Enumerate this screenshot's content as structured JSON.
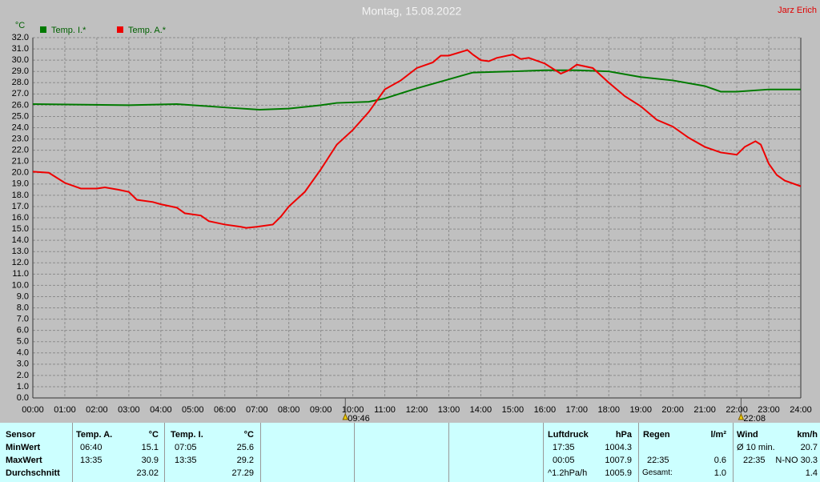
{
  "chart_data": {
    "type": "line",
    "title": "Montag, 15.08.2022",
    "author": "Jarz Erich",
    "y_unit": "°C",
    "xlim": [
      0,
      24
    ],
    "ylim": [
      0,
      32
    ],
    "grid": true,
    "xticks": [
      {
        "value": 0,
        "label": "00:00"
      },
      {
        "value": 1,
        "label": "01:00"
      },
      {
        "value": 2,
        "label": "02:00"
      },
      {
        "value": 3,
        "label": "03:00"
      },
      {
        "value": 4,
        "label": "04:00"
      },
      {
        "value": 5,
        "label": "05:00"
      },
      {
        "value": 6,
        "label": "06:00"
      },
      {
        "value": 7,
        "label": "07:00"
      },
      {
        "value": 8,
        "label": "08:00"
      },
      {
        "value": 9,
        "label": "09:00"
      },
      {
        "value": 10,
        "label": "10:00"
      },
      {
        "value": 11,
        "label": "11:00"
      },
      {
        "value": 12,
        "label": "12:00"
      },
      {
        "value": 13,
        "label": "13:00"
      },
      {
        "value": 14,
        "label": "14:00"
      },
      {
        "value": 15,
        "label": "15:00"
      },
      {
        "value": 16,
        "label": "16:00"
      },
      {
        "value": 17,
        "label": "17:00"
      },
      {
        "value": 18,
        "label": "18:00"
      },
      {
        "value": 19,
        "label": "19:00"
      },
      {
        "value": 20,
        "label": "20:00"
      },
      {
        "value": 21,
        "label": "21:00"
      },
      {
        "value": 22,
        "label": "22:00"
      },
      {
        "value": 23,
        "label": "23:00"
      },
      {
        "value": 24,
        "label": "24:00"
      }
    ],
    "yticks": [
      {
        "value": 0,
        "label": "0.0"
      },
      {
        "value": 1,
        "label": "1.0"
      },
      {
        "value": 2,
        "label": "2.0"
      },
      {
        "value": 3,
        "label": "3.0"
      },
      {
        "value": 4,
        "label": "4.0"
      },
      {
        "value": 5,
        "label": "5.0"
      },
      {
        "value": 6,
        "label": "6.0"
      },
      {
        "value": 7,
        "label": "7.0"
      },
      {
        "value": 8,
        "label": "8.0"
      },
      {
        "value": 9,
        "label": "9.0"
      },
      {
        "value": 10,
        "label": "10.0"
      },
      {
        "value": 11,
        "label": "11.0"
      },
      {
        "value": 12,
        "label": "12.0"
      },
      {
        "value": 13,
        "label": "13.0"
      },
      {
        "value": 14,
        "label": "14.0"
      },
      {
        "value": 15,
        "label": "15.0"
      },
      {
        "value": 16,
        "label": "16.0"
      },
      {
        "value": 17,
        "label": "17.0"
      },
      {
        "value": 18,
        "label": "18.0"
      },
      {
        "value": 19,
        "label": "19.0"
      },
      {
        "value": 20,
        "label": "20.0"
      },
      {
        "value": 21,
        "label": "21.0"
      },
      {
        "value": 22,
        "label": "22.0"
      },
      {
        "value": 23,
        "label": "23.0"
      },
      {
        "value": 24,
        "label": "24.0"
      },
      {
        "value": 25,
        "label": "25.0"
      },
      {
        "value": 26,
        "label": "26.0"
      },
      {
        "value": 27,
        "label": "27.0"
      },
      {
        "value": 28,
        "label": "28.0"
      },
      {
        "value": 29,
        "label": "29.0"
      },
      {
        "value": 30,
        "label": "30.0"
      },
      {
        "value": 31,
        "label": "31.0"
      },
      {
        "value": 32,
        "label": "32.0"
      }
    ],
    "markers": [
      {
        "x": 9.7667,
        "label": "09:46"
      },
      {
        "x": 22.1333,
        "label": "22:08"
      }
    ],
    "series": [
      {
        "name": "Temp. I.*",
        "color": "#007a00",
        "x": [
          0,
          3,
          4.5,
          6,
          7.0833,
          8,
          9,
          9.5,
          10.5,
          11,
          12,
          13,
          13.75,
          15,
          16,
          17,
          18,
          19,
          20,
          21,
          21.5,
          22,
          23,
          24
        ],
        "values": [
          26.1,
          26.0,
          26.1,
          25.8,
          25.6,
          25.7,
          26.0,
          26.2,
          26.3,
          26.6,
          27.5,
          28.3,
          28.9,
          29.0,
          29.1,
          29.1,
          29.0,
          28.5,
          28.2,
          27.7,
          27.2,
          27.2,
          27.4,
          27.4
        ]
      },
      {
        "name": "Temp. A.*",
        "color": "#ee0000",
        "x": [
          0,
          0.5,
          1,
          1.5,
          2,
          2.25,
          2.6667,
          3,
          3.25,
          3.75,
          4,
          4.5,
          4.75,
          5.25,
          5.5,
          6,
          6.5,
          6.6667,
          7,
          7.5,
          7.75,
          8,
          8.5,
          9,
          9.5,
          10,
          10.5,
          11,
          11.5,
          12,
          12.5,
          12.75,
          13,
          13.5833,
          13.75,
          14,
          14.25,
          14.5,
          15,
          15.25,
          15.5,
          16,
          16.5,
          16.75,
          17,
          17.5,
          18,
          18.5,
          19,
          19.5,
          20,
          20.5,
          21,
          21.5,
          22,
          22.25,
          22.5833,
          22.75,
          23,
          23.25,
          23.5,
          24
        ],
        "values": [
          20.1,
          20.0,
          19.1,
          18.6,
          18.6,
          18.7,
          18.5,
          18.3,
          17.6,
          17.4,
          17.2,
          16.9,
          16.4,
          16.2,
          15.7,
          15.4,
          15.2,
          15.1,
          15.2,
          15.4,
          16.1,
          17.0,
          18.3,
          20.3,
          22.5,
          23.8,
          25.4,
          27.4,
          28.2,
          29.3,
          29.8,
          30.4,
          30.4,
          30.9,
          30.5,
          30.0,
          29.9,
          30.2,
          30.5,
          30.1,
          30.2,
          29.7,
          28.8,
          29.1,
          29.6,
          29.3,
          28.0,
          26.8,
          25.9,
          24.7,
          24.1,
          23.1,
          22.3,
          21.8,
          21.6,
          22.3,
          22.8,
          22.5,
          20.8,
          19.8,
          19.3,
          18.8
        ]
      }
    ]
  },
  "table": {
    "row_labels": [
      "Sensor",
      "MinWert",
      "MaxWert",
      "Durchschnitt"
    ],
    "temp_a": {
      "title": "Temp. A.",
      "unit": "°C",
      "min_time": "06:40",
      "min": "15.1",
      "max_time": "13:35",
      "max": "30.9",
      "avg": "23.02"
    },
    "temp_i": {
      "title": "Temp. I.",
      "unit": "°C",
      "min_time": "07:05",
      "min": "25.6",
      "max_time": "13:35",
      "max": "29.2",
      "avg": "27.29"
    },
    "pressure": {
      "title": "Luftdruck",
      "unit": "hPa",
      "min_time": "17:35",
      "min": "1004.3",
      "max_time": "00:05",
      "max": "1007.9",
      "avg_label": "^1.2hPa/h",
      "avg": "1005.9"
    },
    "rain": {
      "title": "Regen",
      "unit": "l/m²",
      "max_time": "22:35",
      "max": "0.6",
      "avg_label": "Gesamt:",
      "avg": "1.0"
    },
    "wind": {
      "title": "Wind",
      "unit": "km/h",
      "min_label": "Ø 10 min.",
      "min": "20.7",
      "max_time": "22:35",
      "max": "N-NO 30.3",
      "avg": "1.4"
    }
  }
}
